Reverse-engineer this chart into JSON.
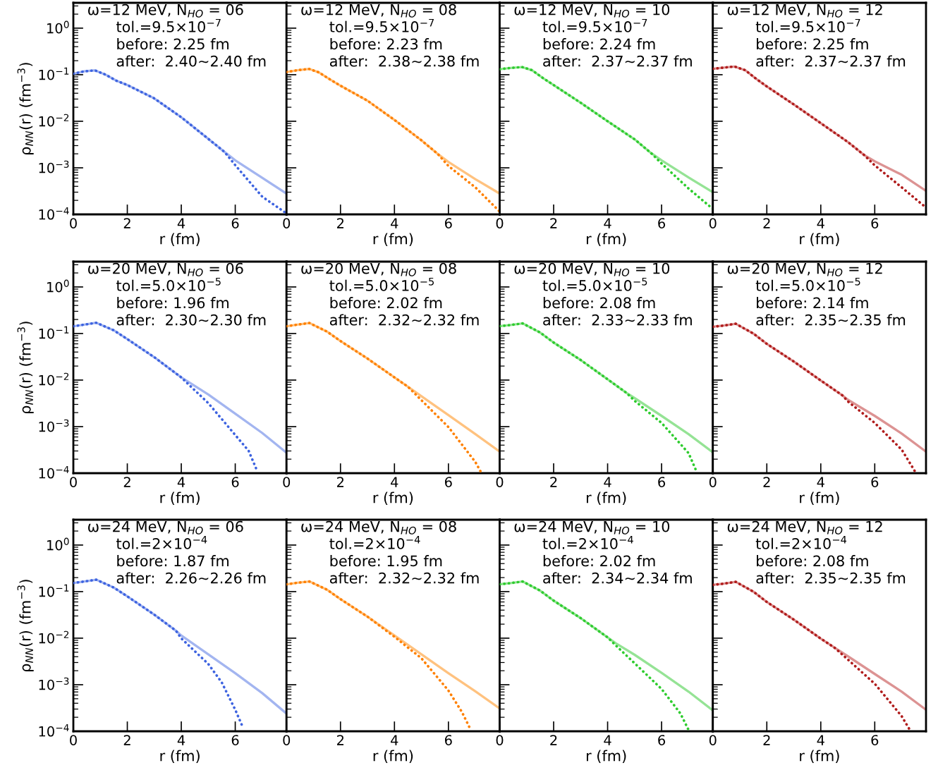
{
  "chart_data": [
    {
      "type": "line",
      "annotations": [
        "ω=12 MeV, N$_{HO}$ = 06",
        "tol.=9.5×10$^{−7}$",
        "before: 2.25 fm",
        "after:  2.40~2.40 fm"
      ],
      "xlabel": "r (fm)",
      "ylabel": "ρ$_{NN}$(r) (fm$^{−3}$)",
      "log": "y",
      "xlim": [
        0,
        7.9
      ],
      "xticks": [
        0,
        2,
        4,
        6
      ],
      "ylim": [
        0.0001,
        3.5
      ],
      "yticks": [
        {
          "value": 0.0001,
          "label": "10$^{−4}$"
        },
        {
          "value": 0.001,
          "label": "10$^{−3}$"
        },
        {
          "value": 0.01,
          "label": "10$^{−2}$"
        },
        {
          "value": 0.1,
          "label": "10$^{−1}$"
        },
        {
          "value": 1,
          "label": "10$^{0}$"
        }
      ],
      "series": [
        {
          "color": "#a3b5f0",
          "line_style": "solid",
          "x": [
            0,
            0.4,
            0.8,
            1.2,
            1.6,
            2,
            3,
            4,
            5,
            5.6,
            6,
            7,
            7.9
          ],
          "values": [
            0.105,
            0.118,
            0.124,
            0.1,
            0.074,
            0.06,
            0.031,
            0.0122,
            0.0042,
            0.0022,
            0.00145,
            0.00061,
            0.00028
          ]
        },
        {
          "color": "#3d63e0",
          "line_style": "dotted",
          "x": [
            0,
            0.4,
            0.8,
            1.2,
            1.6,
            2,
            3,
            4,
            5,
            5.6,
            6,
            7,
            7.9
          ],
          "values": [
            0.105,
            0.118,
            0.124,
            0.1,
            0.074,
            0.06,
            0.031,
            0.0122,
            0.0042,
            0.0022,
            0.00114,
            0.00024,
            0.000105
          ]
        }
      ]
    },
    {
      "type": "line",
      "annotations": [
        "ω=12 MeV, N$_{HO}$ = 08",
        "tol.=9.5×10$^{−7}$",
        "before: 2.23 fm",
        "after:  2.38~2.38 fm"
      ],
      "xlabel": "r (fm)",
      "tick_labels": "x",
      "log": "y",
      "xlim": [
        0,
        7.9
      ],
      "xticks": [
        0,
        2,
        4,
        6
      ],
      "ylim": [
        0.0001,
        3.5
      ],
      "yticks": [
        {
          "value": 0.0001,
          "label": null
        },
        {
          "value": 0.001,
          "label": null
        },
        {
          "value": 0.01,
          "label": null
        },
        {
          "value": 0.1,
          "label": null
        },
        {
          "value": 1,
          "label": null
        }
      ],
      "series": [
        {
          "color": "#ffc27f",
          "line_style": "solid",
          "x": [
            0,
            0.4,
            0.84,
            1.2,
            1.6,
            2,
            3,
            4,
            5,
            5.6,
            6,
            7,
            7.9
          ],
          "values": [
            0.114,
            0.125,
            0.133,
            0.112,
            0.08,
            0.058,
            0.0277,
            0.0107,
            0.0039,
            0.002,
            0.00134,
            0.00057,
            0.00028
          ]
        },
        {
          "color": "#ff8000",
          "line_style": "dotted",
          "x": [
            0,
            0.4,
            0.84,
            1.2,
            1.6,
            2,
            3,
            4,
            5,
            5.6,
            6,
            7,
            7.9
          ],
          "values": [
            0.114,
            0.125,
            0.133,
            0.112,
            0.08,
            0.058,
            0.0277,
            0.0107,
            0.0039,
            0.002,
            0.0011,
            0.00038,
            0.000115
          ]
        }
      ]
    },
    {
      "type": "line",
      "annotations": [
        "ω=12 MeV, N$_{HO}$ = 10",
        "tol.=9.5×10$^{−7}$",
        "before: 2.24 fm",
        "after:  2.37~2.37 fm"
      ],
      "xlabel": "r (fm)",
      "tick_labels": "x",
      "log": "y",
      "xlim": [
        0,
        7.9
      ],
      "xticks": [
        0,
        2,
        4,
        6
      ],
      "ylim": [
        0.0001,
        3.5
      ],
      "yticks": [
        {
          "value": 0.0001,
          "label": null
        },
        {
          "value": 0.001,
          "label": null
        },
        {
          "value": 0.01,
          "label": null
        },
        {
          "value": 0.1,
          "label": null
        },
        {
          "value": 1,
          "label": null
        }
      ],
      "series": [
        {
          "color": "#95e395",
          "line_style": "solid",
          "x": [
            0,
            0.4,
            0.83,
            1.2,
            1.6,
            2,
            3,
            4,
            5,
            5.6,
            6,
            7,
            7.9
          ],
          "values": [
            0.131,
            0.14,
            0.146,
            0.125,
            0.085,
            0.06,
            0.025,
            0.01,
            0.0041,
            0.0021,
            0.00145,
            0.00062,
            0.0003
          ]
        },
        {
          "color": "#2ecc2e",
          "line_style": "dotted",
          "x": [
            0,
            0.4,
            0.83,
            1.2,
            1.6,
            2,
            3,
            4,
            5,
            5.6,
            6,
            7,
            7.9
          ],
          "values": [
            0.131,
            0.14,
            0.146,
            0.125,
            0.085,
            0.06,
            0.025,
            0.01,
            0.0041,
            0.0021,
            0.00124,
            0.00036,
            0.000131
          ]
        }
      ]
    },
    {
      "type": "line",
      "annotations": [
        "ω=12 MeV, N$_{HO}$ = 12",
        "tol.=9.5×10$^{−7}$",
        "before: 2.25 fm",
        "after:  2.37~2.37 fm"
      ],
      "xlabel": "r (fm)",
      "tick_labels": "x",
      "log": "y",
      "xlim": [
        0,
        7.9
      ],
      "xticks": [
        0,
        2,
        4,
        6
      ],
      "ylim": [
        0.0001,
        3.5
      ],
      "yticks": [
        {
          "value": 0.0001,
          "label": null
        },
        {
          "value": 0.001,
          "label": null
        },
        {
          "value": 0.01,
          "label": null
        },
        {
          "value": 0.1,
          "label": null
        },
        {
          "value": 1,
          "label": null
        }
      ],
      "series": [
        {
          "color": "#dc9393",
          "line_style": "solid",
          "x": [
            0,
            0.4,
            0.8,
            1.2,
            1.6,
            2,
            3,
            4,
            5,
            5.6,
            6,
            7,
            7.9
          ],
          "values": [
            0.134,
            0.142,
            0.15,
            0.125,
            0.082,
            0.056,
            0.023,
            0.0091,
            0.0036,
            0.0019,
            0.00138,
            0.00071,
            0.00032
          ]
        },
        {
          "color": "#b01c1c",
          "line_style": "dotted",
          "x": [
            0,
            0.4,
            0.8,
            1.2,
            1.6,
            2,
            3,
            4,
            5,
            5.6,
            6,
            7,
            7.9
          ],
          "values": [
            0.134,
            0.142,
            0.15,
            0.125,
            0.082,
            0.056,
            0.023,
            0.0091,
            0.0036,
            0.0019,
            0.00113,
            0.00038,
            0.00014
          ]
        }
      ]
    },
    {
      "type": "line",
      "annotations": [
        "ω=20 MeV, N$_{HO}$ = 06",
        "tol.=5.0×10$^{−5}$",
        "before: 1.96 fm",
        "after:  2.30~2.30 fm"
      ],
      "xlabel": "r (fm)",
      "ylabel": "ρ$_{NN}$(r) (fm$^{−3}$)",
      "log": "y",
      "xlim": [
        0,
        7.9
      ],
      "xticks": [
        0,
        2,
        4,
        6
      ],
      "ylim": [
        0.0001,
        3.5
      ],
      "yticks": [
        {
          "value": 0.0001,
          "label": "10$^{−4}$"
        },
        {
          "value": 0.001,
          "label": "10$^{−3}$"
        },
        {
          "value": 0.01,
          "label": "10$^{−2}$"
        },
        {
          "value": 0.1,
          "label": "10$^{−1}$"
        },
        {
          "value": 1,
          "label": "10$^{0}$"
        }
      ],
      "series": [
        {
          "color": "#a3b5f0",
          "line_style": "solid",
          "x": [
            0,
            0.4,
            0.85,
            1.5,
            2,
            3,
            4,
            5,
            6,
            7,
            7.9
          ],
          "values": [
            0.143,
            0.155,
            0.17,
            0.117,
            0.076,
            0.031,
            0.0114,
            0.0049,
            0.0019,
            0.00073,
            0.000275
          ]
        },
        {
          "color": "#3d63e0",
          "line_style": "dotted",
          "x": [
            0,
            0.4,
            0.85,
            1.5,
            2,
            3,
            4,
            5,
            6,
            6.5,
            6.8
          ],
          "values": [
            0.143,
            0.155,
            0.17,
            0.117,
            0.076,
            0.031,
            0.0114,
            0.0032,
            0.00066,
            0.0003,
            0.000116
          ]
        }
      ]
    },
    {
      "type": "line",
      "annotations": [
        "ω=20 MeV, N$_{HO}$ = 08",
        "tol.=5.0×10$^{−5}$",
        "before: 2.02 fm",
        "after:  2.32~2.32 fm"
      ],
      "xlabel": "r (fm)",
      "tick_labels": "x",
      "log": "y",
      "xlim": [
        0,
        7.9
      ],
      "xticks": [
        0,
        2,
        4,
        6
      ],
      "ylim": [
        0.0001,
        3.5
      ],
      "yticks": [
        {
          "value": 0.0001,
          "label": null
        },
        {
          "value": 0.001,
          "label": null
        },
        {
          "value": 0.01,
          "label": null
        },
        {
          "value": 0.1,
          "label": null
        },
        {
          "value": 1,
          "label": null
        }
      ],
      "series": [
        {
          "color": "#ffc27f",
          "line_style": "solid",
          "x": [
            0,
            0.4,
            0.85,
            1.5,
            2,
            3,
            4,
            4.5,
            5,
            6,
            7,
            7.9
          ],
          "values": [
            0.143,
            0.155,
            0.168,
            0.11,
            0.069,
            0.029,
            0.0114,
            0.0072,
            0.0045,
            0.00177,
            0.00069,
            0.00029
          ]
        },
        {
          "color": "#ff8000",
          "line_style": "dotted",
          "x": [
            0,
            0.4,
            0.85,
            1.5,
            2,
            3,
            4,
            4.5,
            5,
            6,
            7,
            7.2
          ],
          "values": [
            0.143,
            0.155,
            0.168,
            0.11,
            0.069,
            0.029,
            0.0114,
            0.0072,
            0.0037,
            0.00098,
            0.000173,
            0.000107
          ]
        }
      ]
    },
    {
      "type": "line",
      "annotations": [
        "ω=20 MeV, N$_{HO}$ = 10",
        "tol.=5.0×10$^{−5}$",
        "before: 2.08 fm",
        "after:  2.33~2.33 fm"
      ],
      "xlabel": "r (fm)",
      "tick_labels": "x",
      "log": "y",
      "xlim": [
        0,
        7.9
      ],
      "xticks": [
        0,
        2,
        4,
        6
      ],
      "ylim": [
        0.0001,
        3.5
      ],
      "yticks": [
        {
          "value": 0.0001,
          "label": null
        },
        {
          "value": 0.001,
          "label": null
        },
        {
          "value": 0.01,
          "label": null
        },
        {
          "value": 0.1,
          "label": null
        },
        {
          "value": 1,
          "label": null
        }
      ],
      "series": [
        {
          "color": "#95e395",
          "line_style": "solid",
          "x": [
            0,
            0.4,
            0.85,
            1.5,
            2,
            3,
            4,
            4.7,
            5,
            6,
            7,
            7.9
          ],
          "values": [
            0.144,
            0.152,
            0.165,
            0.105,
            0.064,
            0.027,
            0.0104,
            0.0053,
            0.0041,
            0.0017,
            0.00069,
            0.00028
          ]
        },
        {
          "color": "#2ecc2e",
          "line_style": "dotted",
          "x": [
            0,
            0.4,
            0.85,
            1.5,
            2,
            3,
            4,
            4.7,
            5,
            6,
            7,
            7.3
          ],
          "values": [
            0.144,
            0.152,
            0.165,
            0.105,
            0.064,
            0.027,
            0.0104,
            0.0053,
            0.0036,
            0.0012,
            0.00027,
            0.000107
          ]
        }
      ]
    },
    {
      "type": "line",
      "annotations": [
        "ω=20 MeV, N$_{HO}$ = 12",
        "tol.=5.0×10$^{−5}$",
        "before: 2.14 fm",
        "after:  2.35~2.35 fm"
      ],
      "xlabel": "r (fm)",
      "tick_labels": "x",
      "log": "y",
      "xlim": [
        0,
        7.9
      ],
      "xticks": [
        0,
        2,
        4,
        6
      ],
      "ylim": [
        0.0001,
        3.5
      ],
      "yticks": [
        {
          "value": 0.0001,
          "label": null
        },
        {
          "value": 0.001,
          "label": null
        },
        {
          "value": 0.01,
          "label": null
        },
        {
          "value": 0.1,
          "label": null
        },
        {
          "value": 1,
          "label": null
        }
      ],
      "series": [
        {
          "color": "#dc9393",
          "line_style": "solid",
          "x": [
            0,
            0.4,
            0.85,
            1.5,
            2,
            3,
            4,
            4.8,
            5,
            6,
            7,
            7.9
          ],
          "values": [
            0.14,
            0.148,
            0.162,
            0.1,
            0.06,
            0.025,
            0.0098,
            0.0047,
            0.0038,
            0.0017,
            0.00071,
            0.00029
          ]
        },
        {
          "color": "#b01c1c",
          "line_style": "dotted",
          "x": [
            0,
            0.4,
            0.85,
            1.5,
            2,
            3,
            4,
            4.8,
            5,
            6,
            7,
            7.5
          ],
          "values": [
            0.14,
            0.148,
            0.162,
            0.1,
            0.06,
            0.025,
            0.0098,
            0.0047,
            0.0035,
            0.0012,
            0.00032,
            0.000107
          ]
        }
      ]
    },
    {
      "type": "line",
      "annotations": [
        "ω=24 MeV, N$_{HO}$ = 06",
        "tol.=2×10$^{−4}$",
        "before: 1.87 fm",
        "after:  2.26~2.26 fm"
      ],
      "xlabel": "r (fm)",
      "ylabel": "ρ$_{NN}$(r) (fm$^{−3}$)",
      "log": "y",
      "xlim": [
        0,
        7.9
      ],
      "xticks": [
        0,
        2,
        4,
        6
      ],
      "ylim": [
        0.0001,
        3.5
      ],
      "yticks": [
        {
          "value": 0.0001,
          "label": "10$^{−4}$"
        },
        {
          "value": 0.001,
          "label": "10$^{−3}$"
        },
        {
          "value": 0.01,
          "label": "10$^{−2}$"
        },
        {
          "value": 0.1,
          "label": "10$^{−1}$"
        },
        {
          "value": 1,
          "label": "10$^{0}$"
        }
      ],
      "series": [
        {
          "color": "#a3b5f0",
          "line_style": "solid",
          "x": [
            0,
            0.4,
            0.85,
            1.5,
            2,
            3,
            3.8,
            4,
            5,
            6,
            7,
            7.9
          ],
          "values": [
            0.153,
            0.165,
            0.18,
            0.122,
            0.079,
            0.032,
            0.0145,
            0.0114,
            0.0045,
            0.00177,
            0.00066,
            0.00024
          ]
        },
        {
          "color": "#3d63e0",
          "line_style": "dotted",
          "x": [
            0,
            0.4,
            0.85,
            1.5,
            2,
            3,
            3.8,
            4,
            5,
            5.5,
            6,
            6.3
          ],
          "values": [
            0.153,
            0.165,
            0.18,
            0.122,
            0.079,
            0.032,
            0.0145,
            0.0099,
            0.0028,
            0.00112,
            0.00029,
            0.000115
          ]
        }
      ]
    },
    {
      "type": "line",
      "annotations": [
        "ω=24 MeV, N$_{HO}$ = 08",
        "tol.=2×10$^{−4}$",
        "before: 1.95 fm",
        "after:  2.32~2.32 fm"
      ],
      "xlabel": "r (fm)",
      "tick_labels": "x",
      "log": "y",
      "xlim": [
        0,
        7.9
      ],
      "xticks": [
        0,
        2,
        4,
        6
      ],
      "ylim": [
        0.0001,
        3.5
      ],
      "yticks": [
        {
          "value": 0.0001,
          "label": null
        },
        {
          "value": 0.001,
          "label": null
        },
        {
          "value": 0.01,
          "label": null
        },
        {
          "value": 0.1,
          "label": null
        },
        {
          "value": 1,
          "label": null
        }
      ],
      "series": [
        {
          "color": "#ffc27f",
          "line_style": "solid",
          "x": [
            0,
            0.4,
            0.85,
            1.5,
            2,
            3,
            4,
            5,
            6,
            7,
            7.9
          ],
          "values": [
            0.143,
            0.155,
            0.165,
            0.11,
            0.069,
            0.029,
            0.0114,
            0.0045,
            0.00177,
            0.00072,
            0.00031
          ]
        },
        {
          "color": "#ff8000",
          "line_style": "dotted",
          "x": [
            0,
            0.4,
            0.85,
            1.5,
            2,
            3,
            4,
            5,
            6,
            6.5,
            6.8
          ],
          "values": [
            0.143,
            0.155,
            0.165,
            0.11,
            0.069,
            0.029,
            0.0107,
            0.0037,
            0.00075,
            0.00026,
            0.000115
          ]
        }
      ]
    },
    {
      "type": "line",
      "annotations": [
        "ω=24 MeV, N$_{HO}$ = 10",
        "tol.=2×10$^{−4}$",
        "before: 2.02 fm",
        "after:  2.34~2.34 fm"
      ],
      "xlabel": "r (fm)",
      "tick_labels": "x",
      "log": "y",
      "xlim": [
        0,
        7.9
      ],
      "xticks": [
        0,
        2,
        4,
        6
      ],
      "ylim": [
        0.0001,
        3.5
      ],
      "yticks": [
        {
          "value": 0.0001,
          "label": null
        },
        {
          "value": 0.001,
          "label": null
        },
        {
          "value": 0.01,
          "label": null
        },
        {
          "value": 0.1,
          "label": null
        },
        {
          "value": 1,
          "label": null
        }
      ],
      "series": [
        {
          "color": "#95e395",
          "line_style": "solid",
          "x": [
            0,
            0.4,
            0.85,
            1.5,
            2,
            3,
            4,
            4.3,
            5,
            6,
            7,
            7.9
          ],
          "values": [
            0.144,
            0.152,
            0.165,
            0.105,
            0.064,
            0.027,
            0.0104,
            0.0078,
            0.0044,
            0.0018,
            0.00071,
            0.00028
          ]
        },
        {
          "color": "#2ecc2e",
          "line_style": "dotted",
          "x": [
            0,
            0.4,
            0.85,
            1.5,
            2,
            3,
            4,
            4.3,
            5,
            6,
            6.7,
            7.0
          ],
          "values": [
            0.144,
            0.152,
            0.165,
            0.105,
            0.064,
            0.027,
            0.0104,
            0.007,
            0.0029,
            0.00081,
            0.00024,
            0.000107
          ]
        }
      ]
    },
    {
      "type": "line",
      "annotations": [
        "ω=24 MeV, N$_{HO}$ = 12",
        "tol.=2×10$^{−4}$",
        "before: 2.08 fm",
        "after:  2.35~2.35 fm"
      ],
      "xlabel": "r (fm)",
      "tick_labels": "x",
      "log": "y",
      "xlim": [
        0,
        7.9
      ],
      "xticks": [
        0,
        2,
        4,
        6
      ],
      "ylim": [
        0.0001,
        3.5
      ],
      "yticks": [
        {
          "value": 0.0001,
          "label": null
        },
        {
          "value": 0.001,
          "label": null
        },
        {
          "value": 0.01,
          "label": null
        },
        {
          "value": 0.1,
          "label": null
        },
        {
          "value": 1,
          "label": null
        }
      ],
      "series": [
        {
          "color": "#dc9393",
          "line_style": "solid",
          "x": [
            0,
            0.4,
            0.85,
            1.5,
            2,
            3,
            4,
            4.5,
            5,
            6,
            7,
            7.9
          ],
          "values": [
            0.14,
            0.148,
            0.162,
            0.1,
            0.06,
            0.025,
            0.0098,
            0.0063,
            0.0041,
            0.0017,
            0.00071,
            0.00029
          ]
        },
        {
          "color": "#b01c1c",
          "line_style": "dotted",
          "x": [
            0,
            0.4,
            0.85,
            1.5,
            2,
            3,
            4,
            4.5,
            5,
            6,
            7,
            7.3
          ],
          "values": [
            0.14,
            0.148,
            0.162,
            0.1,
            0.06,
            0.025,
            0.0098,
            0.0063,
            0.0035,
            0.00105,
            0.00021,
            0.000107
          ]
        }
      ]
    }
  ]
}
